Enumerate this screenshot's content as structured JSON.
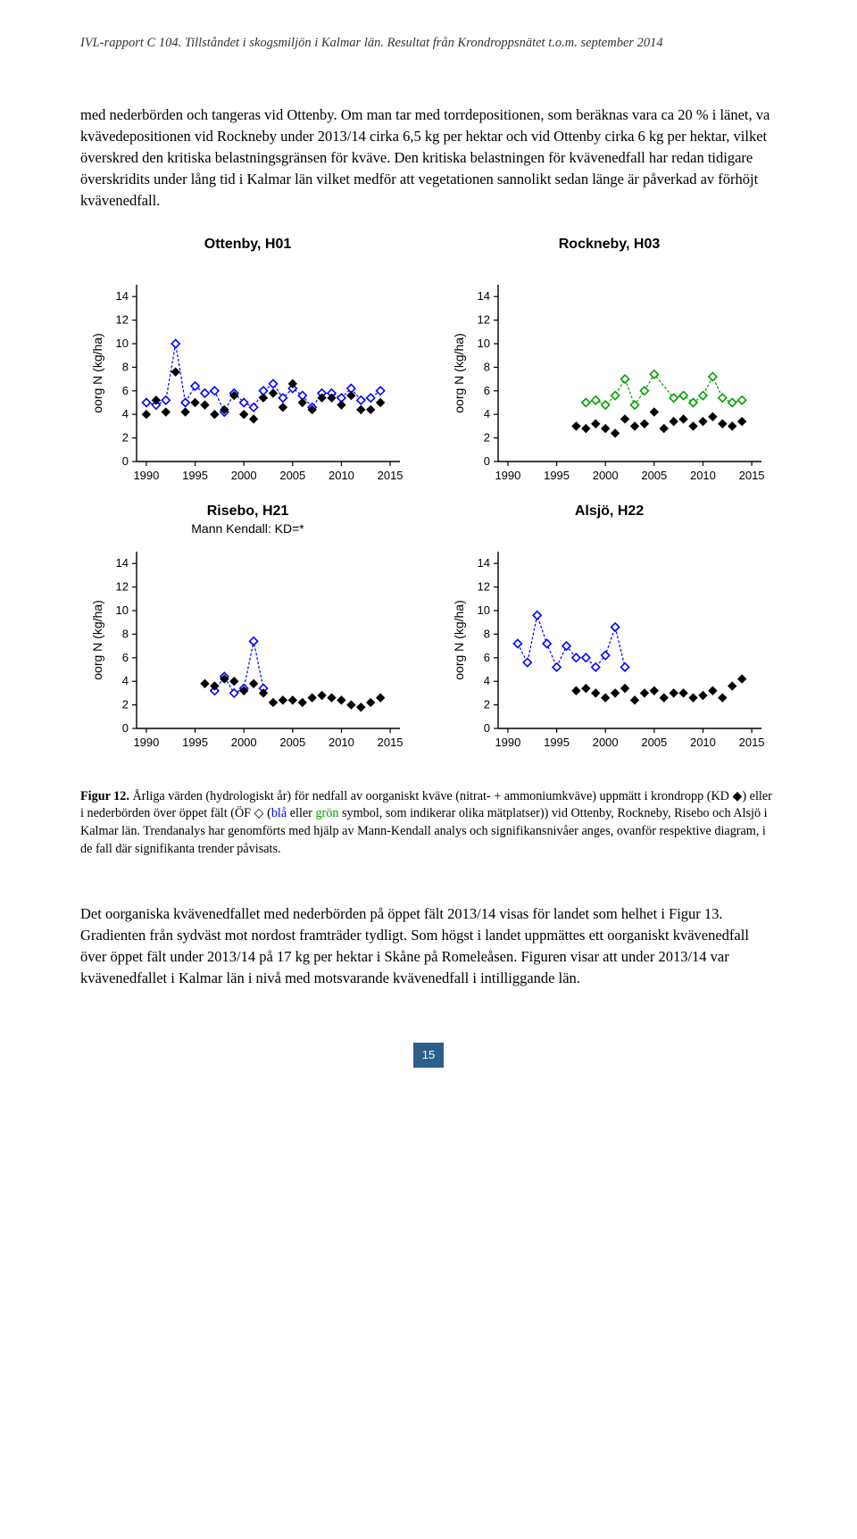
{
  "header": "IVL-rapport C 104. Tillståndet i skogsmiljön i Kalmar län. Resultat från Krondroppsnätet t.o.m. september 2014",
  "para1": "med nederbörden och tangeras vid Ottenby. Om man tar med torrdepositionen, som beräknas vara ca 20 % i länet, va kvävedepositionen vid Rockneby under 2013/14 cirka 6,5 kg per hektar och vid Ottenby cirka 6 kg per hektar, vilket överskred den kritiska belastningsgränsen för kväve. Den kritiska belastningen för kvävenedfall har redan tidigare överskridits under lång tid i Kalmar län vilket medför att vegetationen sannolikt sedan länge är påverkad av förhöjt kvävenedfall.",
  "caption_lead": "Figur 12.",
  "caption_body_1": " Årliga värden (hydrologiskt år) för nedfall av oorganiskt kväve (nitrat- + ammoniumkväve) uppmätt i krondropp (KD ◆) eller i nederbörden över öppet fält (ÖF ◇ (",
  "caption_blue": "blå",
  "caption_mid": " eller ",
  "caption_green": "grön",
  "caption_body_2": " symbol, som indikerar olika mätplatser)) vid Ottenby, Rockneby, Risebo och Alsjö i Kalmar län. Trendanalys har genomförts med hjälp av Mann-Kendall analys och signifikansnivåer anges, ovanför respektive diagram, i de fall där signifikanta trender påvisats.",
  "para2": "Det oorganiska kvävenedfallet med nederbörden på öppet fält 2013/14 visas för landet som helhet i Figur 13. Gradienten från sydväst mot nordost framträder tydligt. Som högst i landet uppmättes ett oorganiskt kvävenedfall över öppet fält under 2013/14 på 17 kg per hektar i Skåne på Romeleåsen. Figuren visar att under 2013/14 var kvävenedfallet i Kalmar län i nivå med motsvarande kvävenedfall i intilliggande län.",
  "page_number": "15",
  "chart_common": {
    "ylabel": "oorg N (kg/ha)",
    "x_ticks": [
      1990,
      1995,
      2000,
      2005,
      2010,
      2015
    ],
    "y_ticks": [
      0,
      2,
      4,
      6,
      8,
      10,
      12,
      14
    ],
    "xlim": [
      1989,
      2016
    ],
    "ylim": [
      0,
      15
    ],
    "tick_fontsize": 13,
    "label_fontsize": 14,
    "axis_color": "#000000",
    "open_line_dash": "3,2",
    "marker_size": 9,
    "marker_stroke": 1.6,
    "filled_color": "#000000",
    "open_color_blue": "#0000ff",
    "open_color_green": "#00a000"
  },
  "charts": [
    {
      "title": "Ottenby, H01",
      "subtitle": "",
      "open_color": "#0000ff",
      "open_x": [
        1990,
        1991,
        1992,
        1993,
        1994,
        1995,
        1996,
        1997,
        1998,
        1999,
        2000,
        2001,
        2002,
        2003,
        2004,
        2005,
        2006,
        2007,
        2008,
        2009,
        2010,
        2011,
        2012,
        2013,
        2014
      ],
      "open_y": [
        5.0,
        4.8,
        5.2,
        10.0,
        5.0,
        6.4,
        5.8,
        6.0,
        4.2,
        5.8,
        5.0,
        4.6,
        6.0,
        6.6,
        5.4,
        6.2,
        5.6,
        4.6,
        5.8,
        5.8,
        5.4,
        6.2,
        5.2,
        5.4,
        6.0
      ],
      "filled_x": [
        1990,
        1991,
        1992,
        1993,
        1994,
        1995,
        1996,
        1997,
        1998,
        1999,
        2000,
        2001,
        2002,
        2003,
        2004,
        2005,
        2006,
        2007,
        2008,
        2009,
        2010,
        2011,
        2012,
        2013,
        2014
      ],
      "filled_y": [
        4.0,
        5.2,
        4.2,
        7.6,
        4.2,
        5.0,
        4.8,
        4.0,
        4.4,
        5.6,
        4.0,
        3.6,
        5.4,
        5.8,
        4.6,
        6.6,
        5.0,
        4.4,
        5.4,
        5.4,
        4.8,
        5.6,
        4.4,
        4.4,
        5.0
      ]
    },
    {
      "title": "Rockneby, H03",
      "subtitle": "",
      "open_color": "#00a000",
      "open_x": [
        1998,
        1999,
        2000,
        2001,
        2002,
        2003,
        2004,
        2005,
        2007,
        2008,
        2009,
        2010,
        2011,
        2012,
        2013,
        2014
      ],
      "open_y": [
        5.0,
        5.2,
        4.8,
        5.6,
        7.0,
        4.8,
        6.0,
        7.4,
        5.4,
        5.6,
        5.0,
        5.6,
        7.2,
        5.4,
        5.0,
        5.2
      ],
      "filled_x": [
        1997,
        1998,
        1999,
        2000,
        2001,
        2002,
        2003,
        2004,
        2005,
        2006,
        2007,
        2008,
        2009,
        2010,
        2011,
        2012,
        2013,
        2014
      ],
      "filled_y": [
        3.0,
        2.8,
        3.2,
        2.8,
        2.4,
        3.6,
        3.0,
        3.2,
        4.2,
        2.8,
        3.4,
        3.6,
        3.0,
        3.4,
        3.8,
        3.2,
        3.0,
        3.4
      ]
    },
    {
      "title": "Risebo, H21",
      "subtitle": "Mann Kendall: KD=*",
      "open_color": "#0000ff",
      "open_x": [
        1997,
        1998,
        1999,
        2000,
        2001,
        2002
      ],
      "open_y": [
        3.2,
        4.4,
        3.0,
        3.4,
        7.4,
        3.4
      ],
      "filled_x": [
        1996,
        1997,
        1998,
        1999,
        2000,
        2001,
        2002,
        2003,
        2004,
        2005,
        2006,
        2007,
        2008,
        2009,
        2010,
        2011,
        2012,
        2013,
        2014
      ],
      "filled_y": [
        3.8,
        3.6,
        4.2,
        4.0,
        3.2,
        3.8,
        3.0,
        2.2,
        2.4,
        2.4,
        2.2,
        2.6,
        2.8,
        2.6,
        2.4,
        2.0,
        1.8,
        2.2,
        2.6
      ]
    },
    {
      "title": "Alsjö, H22",
      "subtitle": "",
      "open_color": "#0000ff",
      "open_x": [
        1991,
        1992,
        1993,
        1994,
        1995,
        1996,
        1997,
        1998,
        1999,
        2000,
        2001,
        2002
      ],
      "open_y": [
        7.2,
        5.6,
        9.6,
        7.2,
        5.2,
        7.0,
        6.0,
        6.0,
        5.2,
        6.2,
        8.6,
        5.2
      ],
      "filled_x": [
        1997,
        1998,
        1999,
        2000,
        2001,
        2002,
        2003,
        2004,
        2005,
        2006,
        2007,
        2008,
        2009,
        2010,
        2011,
        2012,
        2013,
        2014
      ],
      "filled_y": [
        3.2,
        3.4,
        3.0,
        2.6,
        3.0,
        3.4,
        2.4,
        3.0,
        3.2,
        2.6,
        3.0,
        3.0,
        2.6,
        2.8,
        3.2,
        2.6,
        3.6,
        4.2
      ]
    }
  ]
}
